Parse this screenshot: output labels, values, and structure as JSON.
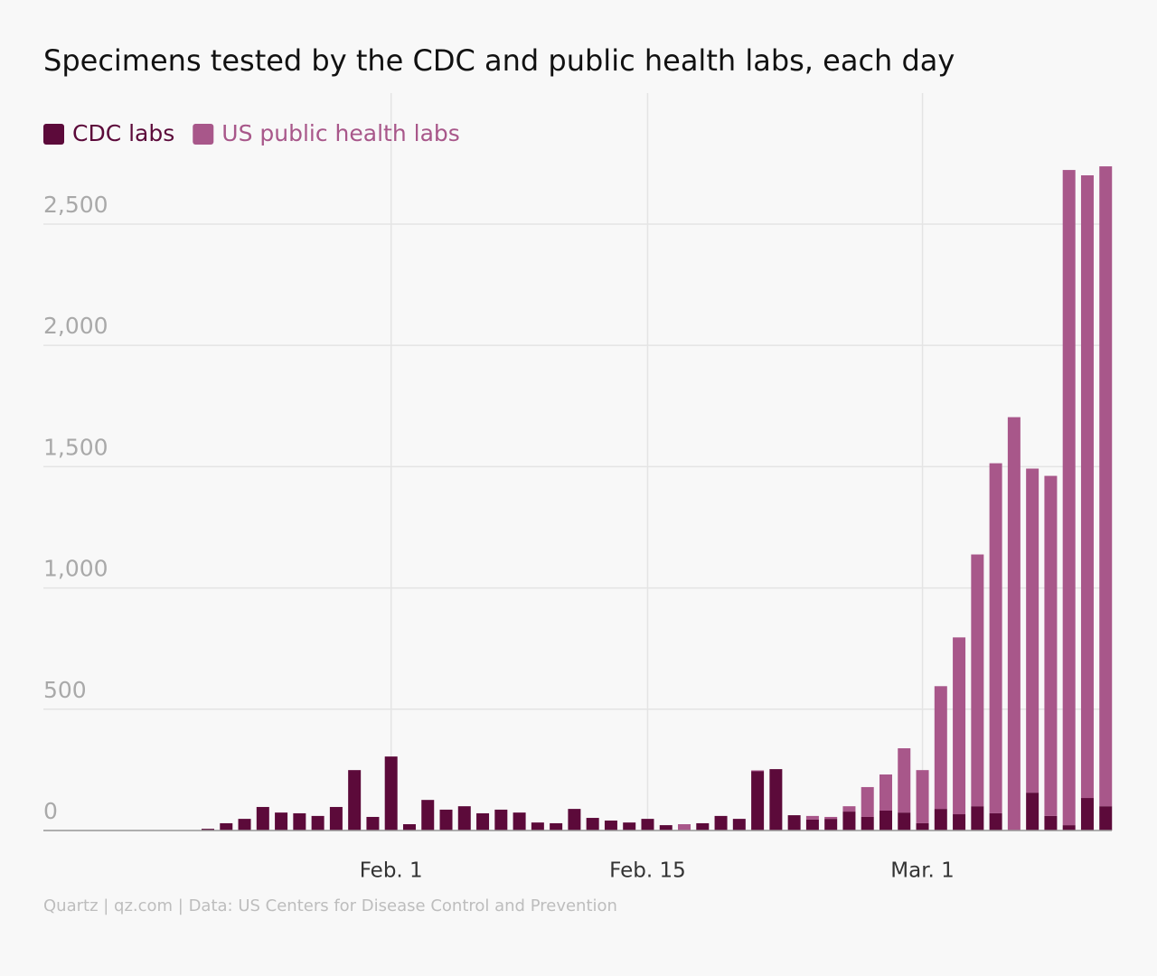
{
  "chart_data": {
    "type": "stacked-bar",
    "title": "Specimens tested by the CDC and public health labs, each day",
    "source": "Quartz | qz.com | Data: US Centers for Disease Control and Prevention",
    "categories": [
      null,
      null,
      null,
      null,
      null,
      null,
      null,
      null,
      null,
      null,
      "Feb. 1",
      null,
      null,
      null,
      null,
      null,
      null,
      null,
      null,
      null,
      null,
      null,
      null,
      null,
      "Feb. 15",
      null,
      null,
      null,
      null,
      null,
      null,
      null,
      null,
      null,
      null,
      null,
      null,
      null,
      null,
      "Mar. 1",
      null,
      null,
      null,
      null,
      null,
      null,
      null,
      null,
      null,
      null
    ],
    "series": [
      {
        "name": "CDC labs",
        "color": "#5c0a3a",
        "values": [
          7,
          30,
          48,
          97,
          74,
          71,
          60,
          97,
          249,
          56,
          305,
          26,
          126,
          86,
          100,
          71,
          86,
          74,
          33,
          30,
          89,
          52,
          41,
          33,
          48,
          22,
          0,
          30,
          60,
          48,
          244,
          253,
          63,
          45,
          48,
          78,
          56,
          82,
          74,
          30,
          89,
          67,
          100,
          71,
          0,
          156,
          60,
          22,
          134,
          100
        ]
      },
      {
        "name": "US public health labs",
        "color": "#a8578a",
        "values": [
          0,
          0,
          0,
          0,
          0,
          0,
          0,
          0,
          0,
          0,
          0,
          0,
          0,
          0,
          0,
          0,
          0,
          0,
          0,
          0,
          0,
          0,
          0,
          0,
          0,
          0,
          26,
          0,
          0,
          0,
          4,
          0,
          0,
          15,
          8,
          22,
          123,
          149,
          265,
          219,
          506,
          729,
          1038,
          1443,
          1704,
          1336,
          1402,
          2701,
          2567,
          2638
        ]
      }
    ],
    "ylim": [
      0,
      3040
    ],
    "yticks": [
      0,
      500,
      {
        "value": 1000,
        "label": "1,000"
      },
      {
        "value": 1500,
        "label": "1,500"
      },
      {
        "value": 2000,
        "label": "2,000"
      },
      {
        "value": 2500,
        "label": "2,500"
      }
    ],
    "grid": true
  }
}
